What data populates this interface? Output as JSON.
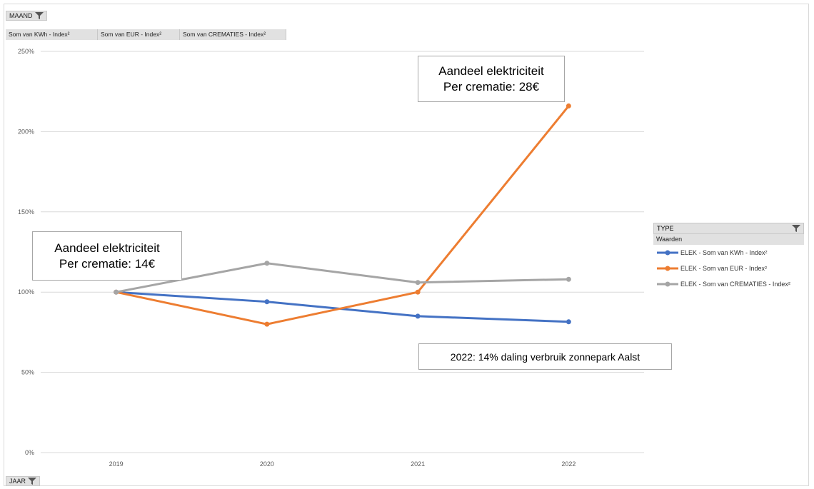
{
  "filters": {
    "maand": "MAAND",
    "jaar": "JAAR",
    "values": [
      "Som van KWh - Index²",
      "Som van EUR - Index²",
      "Som van CREMATIES - Index²"
    ]
  },
  "legend": {
    "title": "TYPE",
    "subtitle": "Waarden"
  },
  "annotations": {
    "a2022_line1": "Aandeel elektriciteit",
    "a2022_line2": "Per crematie: 28€",
    "a2019_line1": "Aandeel elektriciteit",
    "a2019_line2": "Per crematie: 14€",
    "note": "2022: 14% daling verbruik zonnepark Aalst"
  },
  "chart_data": {
    "type": "line",
    "categories": [
      "2019",
      "2020",
      "2021",
      "2022"
    ],
    "ylim": [
      0,
      2.5
    ],
    "yticks": [
      "0%",
      "50%",
      "100%",
      "150%",
      "200%",
      "250%"
    ],
    "grid": true,
    "legend_position": "right",
    "series": [
      {
        "name": "ELEK - Som van KWh - Index²",
        "color": "#4472c4",
        "values": [
          1.0,
          0.94,
          0.85,
          0.815
        ]
      },
      {
        "name": "ELEK - Som van EUR - Index²",
        "color": "#ed7d31",
        "values": [
          1.0,
          0.8,
          1.0,
          2.16
        ]
      },
      {
        "name": "ELEK - Som van CREMATIES - Index²",
        "color": "#a5a5a5",
        "values": [
          1.0,
          1.18,
          1.06,
          1.08
        ]
      }
    ]
  }
}
